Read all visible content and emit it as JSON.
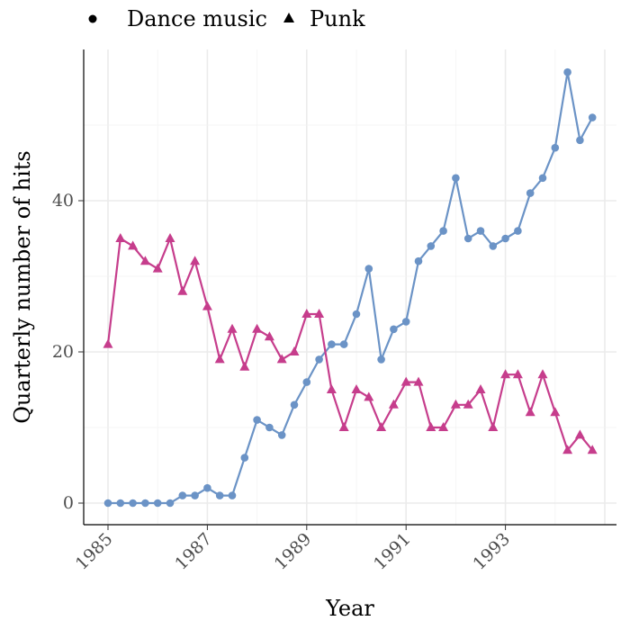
{
  "chart_data": {
    "type": "line",
    "title": "",
    "xlabel": "Year",
    "ylabel": "Quarterly number of hits",
    "xlim": [
      1984.5,
      1995.0
    ],
    "ylim": [
      -3,
      60
    ],
    "x_ticks": [
      "1985",
      "1987",
      "1989",
      "1991",
      "1993"
    ],
    "y_ticks": [
      "0",
      "20",
      "40"
    ],
    "grid": true,
    "legend_position": "top",
    "x_start": 1985,
    "x_step": 0.25,
    "series": [
      {
        "name": "Dance music",
        "marker": "circle",
        "color": "#6b93c6",
        "values": [
          0,
          0,
          0,
          0,
          0,
          0,
          1,
          1,
          2,
          1,
          1,
          6,
          11,
          10,
          9,
          13,
          16,
          19,
          21,
          21,
          25,
          31,
          19,
          23,
          24,
          32,
          34,
          36,
          43,
          35,
          36,
          34,
          35,
          36,
          41,
          43,
          47,
          57,
          48,
          51
        ]
      },
      {
        "name": "Punk",
        "marker": "triangle",
        "color": "#c63d8c",
        "values": [
          21,
          35,
          34,
          32,
          31,
          35,
          28,
          32,
          26,
          19,
          23,
          18,
          23,
          22,
          19,
          20,
          25,
          25,
          15,
          10,
          15,
          14,
          10,
          13,
          16,
          16,
          10,
          10,
          13,
          13,
          15,
          10,
          17,
          17,
          12,
          17,
          12,
          7,
          9,
          7
        ]
      }
    ]
  }
}
